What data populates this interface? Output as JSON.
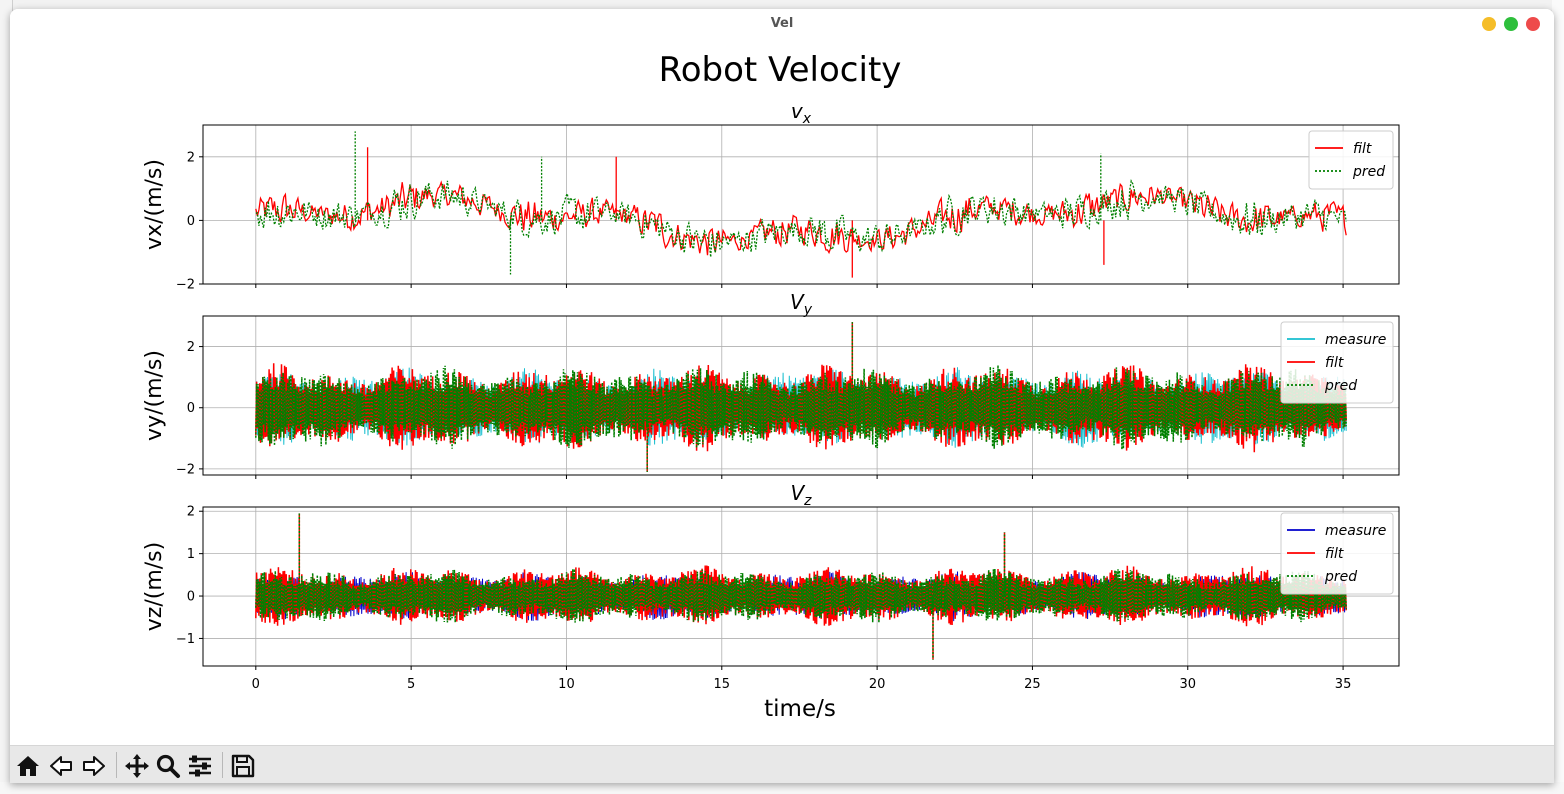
{
  "window": {
    "title": "Vel"
  },
  "figure": {
    "suptitle": "Robot Velocity",
    "xlabel": "time/s"
  },
  "chart_data": [
    {
      "type": "line",
      "title": "v",
      "title_sub": "x",
      "ylabel": "vx/(m/s)",
      "xlim": [
        -1.7,
        36.8
      ],
      "ylim": [
        -2,
        3
      ],
      "yticks": [
        -2,
        0,
        2
      ],
      "xticks": [
        0,
        5,
        10,
        15,
        20,
        25,
        30,
        35
      ],
      "grid": true,
      "legend_position": "upper-right",
      "series": [
        {
          "name": "filt",
          "color": "#ff0000",
          "style": "solid",
          "amplitude": 0.55,
          "spikes": [
            [
              3.6,
              2.3
            ],
            [
              19.2,
              -1.8
            ],
            [
              11.6,
              2.0
            ],
            [
              27.3,
              -1.4
            ]
          ]
        },
        {
          "name": "pred",
          "color": "#008000",
          "style": "dotted",
          "amplitude": 0.6,
          "spikes": [
            [
              3.2,
              2.8
            ],
            [
              9.2,
              2.0
            ],
            [
              27.2,
              2.1
            ],
            [
              8.2,
              -1.7
            ]
          ]
        }
      ]
    },
    {
      "type": "line",
      "title": "V",
      "title_sub": "y",
      "ylabel": "vy/(m/s)",
      "xlim": [
        -1.7,
        36.8
      ],
      "ylim": [
        -2.2,
        3.0
      ],
      "yticks": [
        -2,
        0,
        2
      ],
      "xticks": [
        0,
        5,
        10,
        15,
        20,
        25,
        30,
        35
      ],
      "grid": true,
      "legend_position": "upper-right",
      "series": [
        {
          "name": "measure",
          "color": "#17becf",
          "style": "solid",
          "amplitude": 1.0,
          "spikes": []
        },
        {
          "name": "filt",
          "color": "#ff0000",
          "style": "solid",
          "amplitude": 1.1,
          "spikes": [
            [
              19.2,
              2.8
            ],
            [
              12.6,
              -2.1
            ]
          ]
        },
        {
          "name": "pred",
          "color": "#008000",
          "style": "dotted",
          "amplitude": 1.05,
          "spikes": [
            [
              19.2,
              2.8
            ],
            [
              12.6,
              -2.1
            ]
          ]
        }
      ]
    },
    {
      "type": "line",
      "title": "V",
      "title_sub": "z",
      "ylabel": "vz/(m/s)",
      "xlim": [
        -1.7,
        36.8
      ],
      "ylim": [
        -1.65,
        2.1
      ],
      "yticks": [
        -1,
        0,
        1,
        2
      ],
      "xticks": [
        0,
        5,
        10,
        15,
        20,
        25,
        30,
        35
      ],
      "xticklabels": [
        "0",
        "5",
        "10",
        "15",
        "20",
        "25",
        "30",
        "35"
      ],
      "grid": true,
      "legend_position": "upper-right",
      "series": [
        {
          "name": "measure",
          "color": "#0000cc",
          "style": "solid",
          "amplitude": 0.45,
          "spikes": []
        },
        {
          "name": "filt",
          "color": "#ff0000",
          "style": "solid",
          "amplitude": 0.55,
          "spikes": [
            [
              1.4,
              1.95
            ],
            [
              24.1,
              1.5
            ],
            [
              21.8,
              -1.5
            ]
          ]
        },
        {
          "name": "pred",
          "color": "#008000",
          "style": "dotted",
          "amplitude": 0.5,
          "spikes": [
            [
              1.4,
              1.95
            ],
            [
              24.1,
              1.5
            ],
            [
              21.8,
              -1.5
            ]
          ]
        }
      ]
    }
  ],
  "toolbar": {
    "buttons": [
      {
        "name": "home-button",
        "icon": "home-icon"
      },
      {
        "name": "back-button",
        "icon": "arrow-left-icon"
      },
      {
        "name": "forward-button",
        "icon": "arrow-right-icon"
      },
      {
        "name": "pan-button",
        "icon": "move-icon"
      },
      {
        "name": "zoom-button",
        "icon": "magnifier-icon"
      },
      {
        "name": "configure-subplots-button",
        "icon": "sliders-icon"
      },
      {
        "name": "save-button",
        "icon": "floppy-disk-icon"
      }
    ]
  },
  "colors": {
    "grid": "#b0b0b0",
    "axes": "#000000",
    "toolbar_bg": "#e8e8e8"
  }
}
